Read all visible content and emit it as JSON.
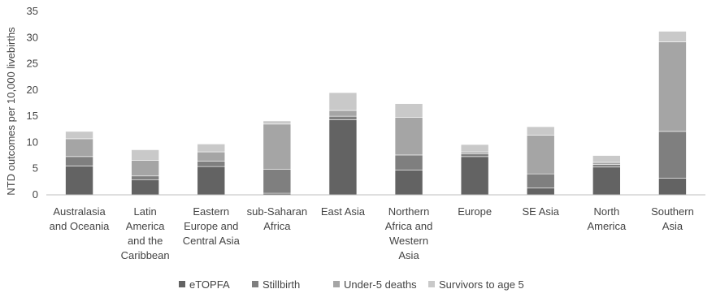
{
  "chart_data": {
    "type": "bar",
    "stacked": true,
    "title": "",
    "xlabel": "",
    "ylabel": "NTD outcomes per 10,000 livebirths",
    "ylim": [
      0,
      35
    ],
    "yticks": [
      "0",
      "5",
      "10",
      "15",
      "20",
      "25",
      "30",
      "35"
    ],
    "grid": false,
    "legend_position": "bottom",
    "categories": [
      [
        "Australasia",
        "and Oceania"
      ],
      [
        "Latin",
        "America",
        "and the",
        "Caribbean"
      ],
      [
        "Eastern",
        "Europe and",
        "Central Asia"
      ],
      [
        "sub-Saharan",
        "Africa"
      ],
      [
        "East Asia"
      ],
      [
        "Northern",
        "Africa and",
        "Western",
        "Asia"
      ],
      [
        "Europe"
      ],
      [
        "SE Asia"
      ],
      [
        "North",
        "America"
      ],
      [
        "Southern",
        "Asia"
      ]
    ],
    "series": [
      {
        "name": "eTOPFA",
        "color": "#636363",
        "values": [
          5.5,
          2.9,
          5.4,
          0.3,
          14.3,
          4.7,
          7.3,
          1.3,
          5.3,
          3.2
        ]
      },
      {
        "name": "Stillbirth",
        "color": "#7f7f7f",
        "values": [
          1.8,
          0.7,
          1.0,
          4.6,
          0.7,
          2.9,
          0.5,
          2.7,
          0.5,
          8.9
        ]
      },
      {
        "name": "Under-5 deaths",
        "color": "#a5a5a5",
        "values": [
          3.4,
          3.0,
          1.8,
          8.6,
          1.1,
          7.2,
          0.4,
          7.4,
          0.4,
          17.1
        ]
      },
      {
        "name": "Survivors to age 5",
        "color": "#c9c9c9",
        "values": [
          1.4,
          2.0,
          1.5,
          0.6,
          3.4,
          2.6,
          1.4,
          1.6,
          1.3,
          2.0
        ]
      }
    ]
  }
}
